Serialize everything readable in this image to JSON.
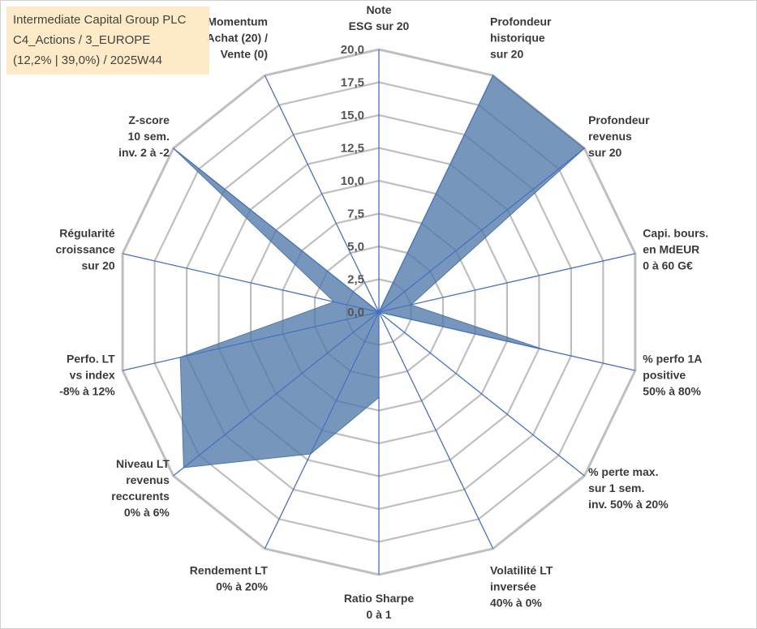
{
  "title_box": {
    "line1": "Intermediate Capital Group PLC",
    "line2": "C4_Actions / 3_EUROPE",
    "line3": "(12,2% | 39,0%) / 2025W44"
  },
  "chart_data": {
    "type": "radar",
    "rmin": 0,
    "rmax": 20,
    "ticks": [
      "0,0",
      "2,5",
      "5,0",
      "7,5",
      "10,0",
      "12,5",
      "15,0",
      "17,5",
      "20,0"
    ],
    "axes": [
      {
        "label": [
          "Note",
          "ESG sur 20"
        ]
      },
      {
        "label": [
          "Profondeur",
          "historique",
          "sur 20"
        ]
      },
      {
        "label": [
          "Profondeur",
          "revenus",
          "sur 20"
        ]
      },
      {
        "label": [
          "Capi. bours.",
          "en MdEUR",
          "0 à 60 G€"
        ]
      },
      {
        "label": [
          "% perfo 1A",
          "positive",
          "50% à 80%"
        ]
      },
      {
        "label": [
          "% perte max.",
          "sur 1 sem.",
          "inv. 50% à 20%"
        ]
      },
      {
        "label": [
          "Volatilité LT",
          "inversée",
          "40% à 0%"
        ]
      },
      {
        "label": [
          "Ratio Sharpe",
          "0 à 1"
        ]
      },
      {
        "label": [
          "Rendement LT",
          "0% à 20%"
        ]
      },
      {
        "label": [
          "Niveau LT",
          "revenus",
          "reccurents",
          "0% à 6%"
        ]
      },
      {
        "label": [
          "Perfo. LT",
          "vs index",
          "-8% à 12%"
        ]
      },
      {
        "label": [
          "Régularité",
          "croissance",
          "sur 20"
        ]
      },
      {
        "label": [
          "Z-score",
          "10 sem.",
          "inv. 2 à -2"
        ]
      },
      {
        "label": [
          "Momentum",
          "Achat (20) /",
          "Vente (0)"
        ]
      }
    ],
    "series": [
      {
        "values": [
          0,
          20,
          20,
          2.5,
          13,
          0,
          0,
          6.5,
          12,
          19,
          15.5,
          3.5,
          20,
          0
        ]
      }
    ],
    "colors": {
      "fill": "#4f7aa8",
      "line": "#4472c4",
      "grid": "#bfbfbf"
    },
    "grid": true
  }
}
